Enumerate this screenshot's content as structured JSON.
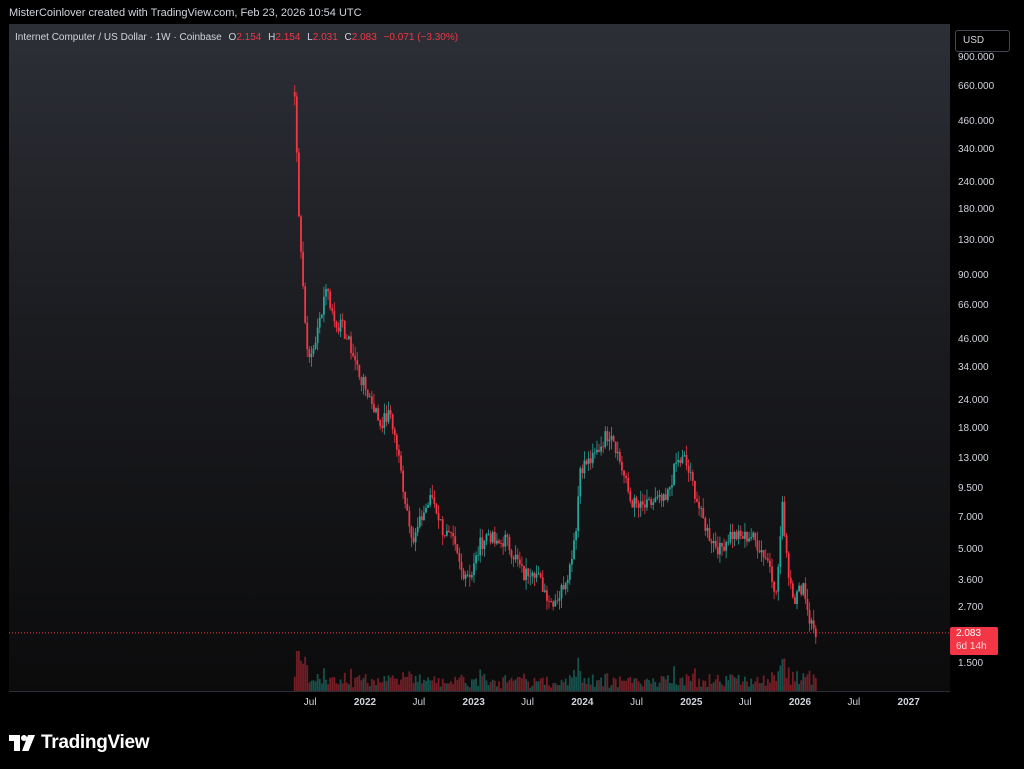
{
  "attribution": "MisterCoinlover created with TradingView.com, Feb 23, 2026 10:54 UTC",
  "legend": {
    "symbol": "Internet Computer / US Dollar · 1W · Coinbase",
    "open_label": "O",
    "open": "2.154",
    "high_label": "H",
    "high": "2.154",
    "low_label": "L",
    "low": "2.031",
    "close_label": "C",
    "close": "2.083",
    "change": "−0.071 (−3.30%)"
  },
  "currency_button": "USD",
  "price_tag": {
    "price": "2.083",
    "countdown": "6d 14h"
  },
  "logo_text": "TradingView",
  "colors": {
    "up": "#26a69a",
    "down": "#f23645",
    "background_top": "#2d2f37",
    "background_bottom": "#0b0b0c"
  },
  "chart_data": {
    "type": "candlestick",
    "title": "Internet Computer / US Dollar · 1W · Coinbase",
    "y_scale": "log",
    "y_tick_labels": [
      "900.000",
      "660.000",
      "460.000",
      "340.000",
      "240.000",
      "180.000",
      "130.000",
      "90.000",
      "66.000",
      "46.000",
      "34.000",
      "24.000",
      "18.000",
      "13.000",
      "9.500",
      "7.000",
      "5.000",
      "3.600",
      "2.700",
      "1.500"
    ],
    "x_tick_labels": [
      "Jul",
      "2022",
      "Jul",
      "2023",
      "Jul",
      "2024",
      "Jul",
      "2025",
      "Jul",
      "2026",
      "Jul",
      "2027"
    ],
    "x_tick_dates": [
      "2021-07-01",
      "2022-01-01",
      "2022-07-01",
      "2023-01-01",
      "2023-07-01",
      "2024-01-01",
      "2024-07-01",
      "2025-01-01",
      "2025-07-01",
      "2026-01-01",
      "2026-07-01",
      "2027-01-01"
    ],
    "last_price": 2.083,
    "weekly_close_path": [
      {
        "date": "2021-05-10",
        "price": 600
      },
      {
        "date": "2021-05-24",
        "price": 180
      },
      {
        "date": "2021-06-14",
        "price": 55
      },
      {
        "date": "2021-06-28",
        "price": 36
      },
      {
        "date": "2021-07-26",
        "price": 50
      },
      {
        "date": "2021-08-23",
        "price": 82
      },
      {
        "date": "2021-09-20",
        "price": 56
      },
      {
        "date": "2021-10-18",
        "price": 52
      },
      {
        "date": "2021-11-15",
        "price": 42
      },
      {
        "date": "2021-12-20",
        "price": 30
      },
      {
        "date": "2022-01-24",
        "price": 24
      },
      {
        "date": "2022-02-21",
        "price": 19
      },
      {
        "date": "2022-03-28",
        "price": 21
      },
      {
        "date": "2022-04-25",
        "price": 13
      },
      {
        "date": "2022-05-16",
        "price": 8.5
      },
      {
        "date": "2022-06-13",
        "price": 5.5
      },
      {
        "date": "2022-07-18",
        "price": 7.5
      },
      {
        "date": "2022-08-15",
        "price": 8.8
      },
      {
        "date": "2022-09-19",
        "price": 6.2
      },
      {
        "date": "2022-10-24",
        "price": 5.4
      },
      {
        "date": "2022-11-21",
        "price": 4.0
      },
      {
        "date": "2022-12-26",
        "price": 3.9
      },
      {
        "date": "2023-01-23",
        "price": 5.3
      },
      {
        "date": "2023-02-20",
        "price": 6.0
      },
      {
        "date": "2023-03-20",
        "price": 5.2
      },
      {
        "date": "2023-04-17",
        "price": 5.6
      },
      {
        "date": "2023-05-22",
        "price": 4.6
      },
      {
        "date": "2023-06-19",
        "price": 3.8
      },
      {
        "date": "2023-07-17",
        "price": 4.2
      },
      {
        "date": "2023-08-21",
        "price": 3.4
      },
      {
        "date": "2023-09-18",
        "price": 2.9
      },
      {
        "date": "2023-10-16",
        "price": 3.1
      },
      {
        "date": "2023-11-20",
        "price": 4.2
      },
      {
        "date": "2023-12-11",
        "price": 6.5
      },
      {
        "date": "2023-12-25",
        "price": 12.0
      },
      {
        "date": "2024-02-05",
        "price": 13.0
      },
      {
        "date": "2024-03-18",
        "price": 16.5
      },
      {
        "date": "2024-04-08",
        "price": 17.5
      },
      {
        "date": "2024-05-06",
        "price": 12.8
      },
      {
        "date": "2024-06-10",
        "price": 8.5
      },
      {
        "date": "2024-07-08",
        "price": 7.8
      },
      {
        "date": "2024-08-05",
        "price": 7.9
      },
      {
        "date": "2024-09-02",
        "price": 8.4
      },
      {
        "date": "2024-10-07",
        "price": 8.3
      },
      {
        "date": "2024-11-11",
        "price": 12.5
      },
      {
        "date": "2024-12-09",
        "price": 13.0
      },
      {
        "date": "2025-01-06",
        "price": 10.0
      },
      {
        "date": "2025-02-03",
        "price": 7.2
      },
      {
        "date": "2025-03-03",
        "price": 5.8
      },
      {
        "date": "2025-04-07",
        "price": 5.0
      },
      {
        "date": "2025-05-12",
        "price": 5.9
      },
      {
        "date": "2025-06-16",
        "price": 5.7
      },
      {
        "date": "2025-07-21",
        "price": 5.8
      },
      {
        "date": "2025-08-25",
        "price": 5.0
      },
      {
        "date": "2025-09-22",
        "price": 4.3
      },
      {
        "date": "2025-10-13",
        "price": 3.1
      },
      {
        "date": "2025-11-03",
        "price": 7.8
      },
      {
        "date": "2025-11-24",
        "price": 3.9
      },
      {
        "date": "2025-12-15",
        "price": 3.0
      },
      {
        "date": "2026-01-12",
        "price": 3.5
      },
      {
        "date": "2026-02-02",
        "price": 2.4
      },
      {
        "date": "2026-02-23",
        "price": 2.083
      }
    ]
  }
}
